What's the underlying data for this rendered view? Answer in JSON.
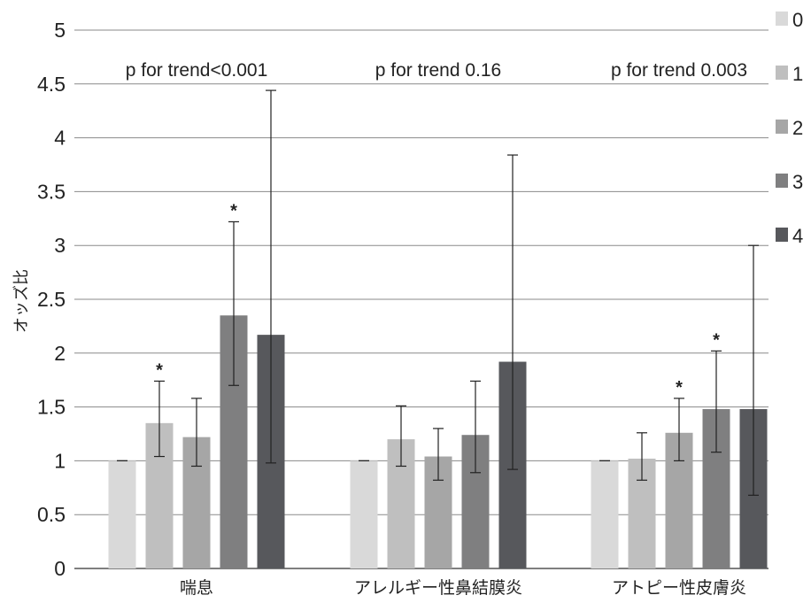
{
  "chart_data": {
    "type": "bar",
    "ylabel": "オッズ比",
    "xlabel": "",
    "ylim": [
      0,
      5
    ],
    "yticks": [
      0,
      0.5,
      1,
      1.5,
      2,
      2.5,
      3,
      3.5,
      4,
      4.5,
      5
    ],
    "grid": true,
    "legend_position": "right",
    "categories": [
      "喘息",
      "アレルギー性鼻結膜炎",
      "アトピー性皮膚炎"
    ],
    "trend_annotations": [
      "p for trend<0.001",
      "p for trend 0.16",
      "p for trend 0.003"
    ],
    "series": [
      {
        "name": "0",
        "color": "#d9d9d9",
        "values": [
          1.0,
          1.0,
          1.0
        ],
        "err_low": [
          1.0,
          1.0,
          1.0
        ],
        "err_high": [
          1.0,
          1.0,
          1.0
        ],
        "significant": [
          false,
          false,
          false
        ]
      },
      {
        "name": "1",
        "color": "#bfbfbf",
        "values": [
          1.35,
          1.2,
          1.02
        ],
        "err_low": [
          1.04,
          0.95,
          0.82
        ],
        "err_high": [
          1.74,
          1.51,
          1.26
        ],
        "significant": [
          true,
          false,
          false
        ]
      },
      {
        "name": "2",
        "color": "#a6a6a6",
        "values": [
          1.22,
          1.04,
          1.26
        ],
        "err_low": [
          0.95,
          0.82,
          1.0
        ],
        "err_high": [
          1.58,
          1.3,
          1.58
        ],
        "significant": [
          false,
          false,
          true
        ]
      },
      {
        "name": "3",
        "color": "#7f7f80",
        "values": [
          2.35,
          1.24,
          1.48
        ],
        "err_low": [
          1.7,
          0.89,
          1.08
        ],
        "err_high": [
          3.22,
          1.74,
          2.02
        ],
        "significant": [
          true,
          false,
          true
        ]
      },
      {
        "name": "4",
        "color": "#57585c",
        "values": [
          2.17,
          1.92,
          1.48
        ],
        "err_low": [
          0.98,
          0.92,
          0.68
        ],
        "err_high": [
          4.44,
          3.84,
          3.0
        ],
        "significant": [
          false,
          false,
          false
        ]
      }
    ],
    "significance_marker": "*"
  }
}
